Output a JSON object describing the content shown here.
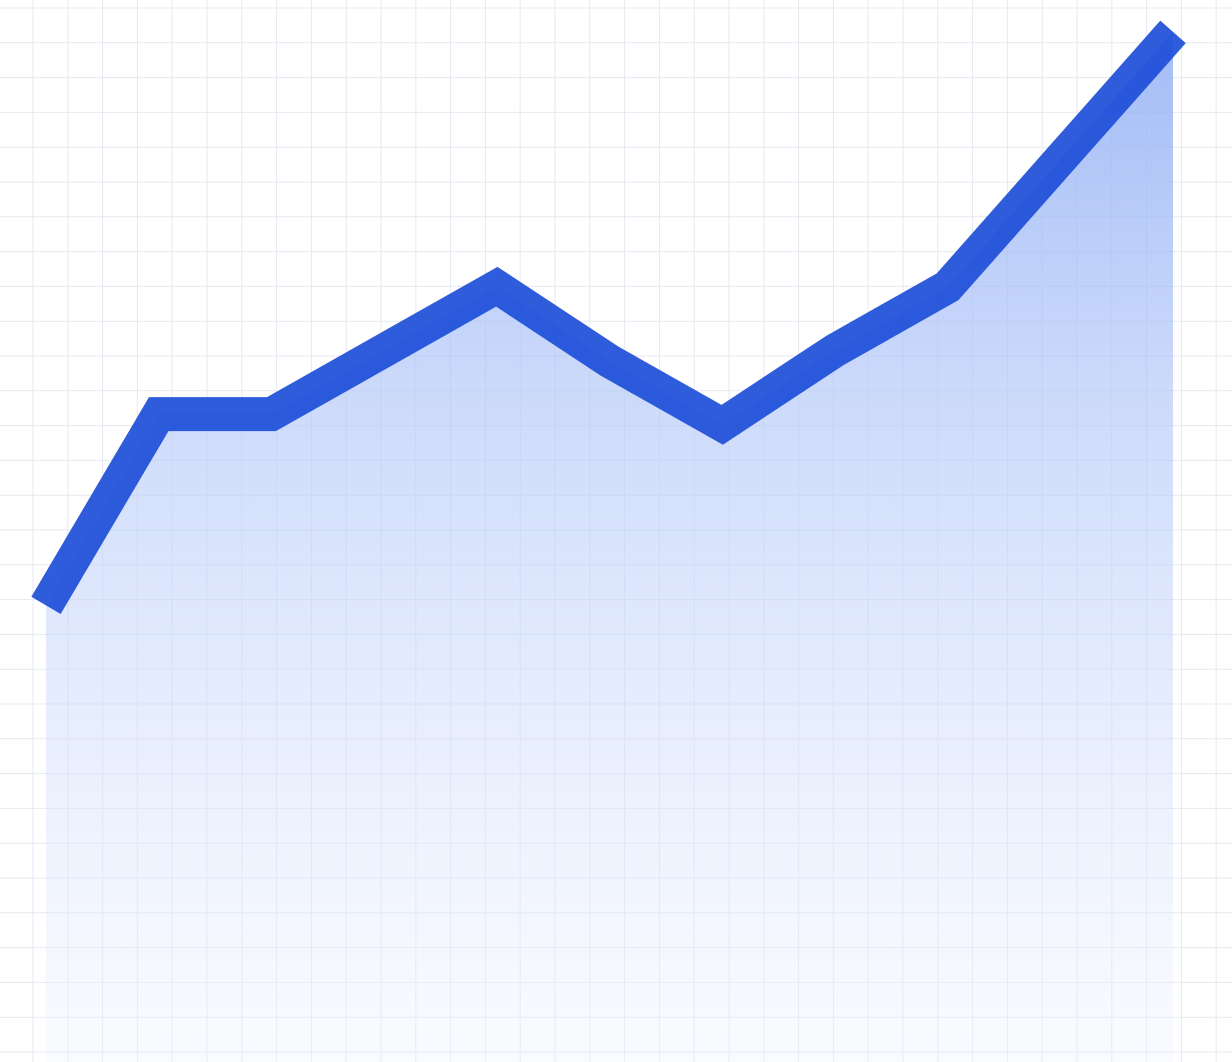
{
  "chart_data": {
    "type": "area",
    "title": "",
    "xlabel": "",
    "ylabel": "",
    "grid": true,
    "x": [
      0,
      1,
      2,
      3,
      4,
      5,
      6,
      7,
      8,
      9,
      10
    ],
    "series": [
      {
        "values": [
          43,
          61,
          61,
          67,
          73,
          66,
          60,
          67,
          73,
          85,
          97
        ]
      }
    ],
    "xlim": [
      0,
      10
    ],
    "ylim": [
      0,
      100
    ]
  },
  "colors": {
    "background": "#ffffff",
    "grid": "#e5e9f0",
    "line": "#1d4ed8",
    "area_top": "#93b0f5",
    "area_bottom": "#eef3fe"
  }
}
